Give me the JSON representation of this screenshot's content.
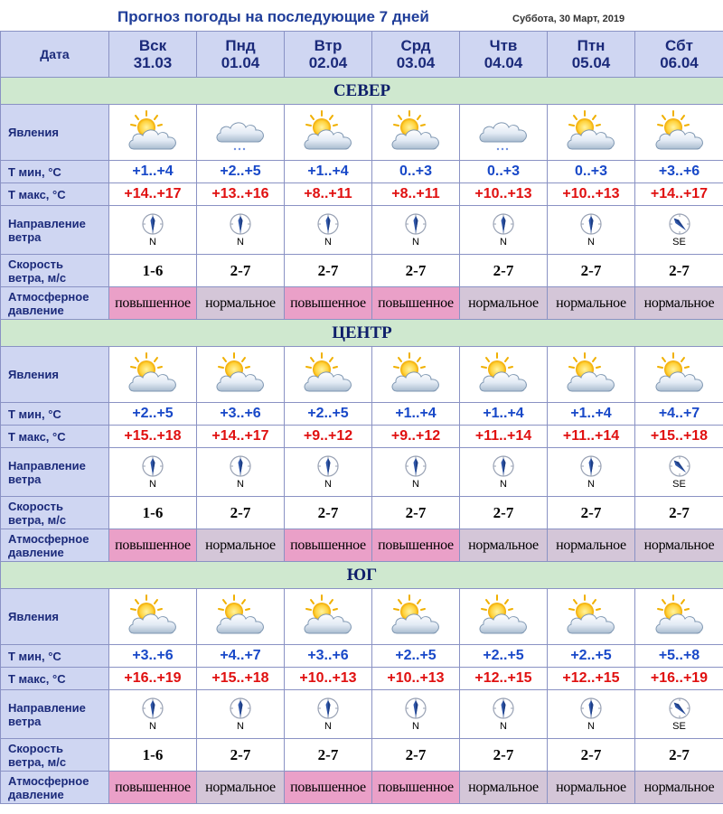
{
  "page": {
    "title": "Прогноз погоды на последующие 7 дней",
    "date_info": "Суббота, 30 Март, 2019"
  },
  "labels": {
    "date": "Дата",
    "phenomena": "Явления",
    "tmin": "Т мин, °С",
    "tmax": "Т макс, °С",
    "wind_dir": [
      "Направление",
      "ветра"
    ],
    "wind_speed": [
      "Скорость",
      "ветра, м/с"
    ],
    "pressure": [
      "Атмосферное",
      "давление"
    ]
  },
  "days": [
    {
      "dow": "Вск",
      "date": "31.03"
    },
    {
      "dow": "Пнд",
      "date": "01.04"
    },
    {
      "dow": "Втр",
      "date": "02.04"
    },
    {
      "dow": "Срд",
      "date": "03.04"
    },
    {
      "dow": "Чтв",
      "date": "04.04"
    },
    {
      "dow": "Птн",
      "date": "05.04"
    },
    {
      "dow": "Сбт",
      "date": "06.04"
    }
  ],
  "colors": {
    "header_bg": "#cfd6f2",
    "region_bg": "#cfe8cf",
    "tmin": "#1848c8",
    "tmax": "#e01010",
    "pressure_high": "#eaa0c8",
    "pressure_normal": "#d4c6d8"
  },
  "regions": [
    {
      "name": "СЕВЕР",
      "icons": [
        "partly-cloudy-sun-icon",
        "cloudy-light-snow-icon",
        "partly-cloudy-sun-icon",
        "partly-cloudy-sun-icon",
        "cloudy-light-snow-icon",
        "partly-cloudy-sun-icon",
        "partly-cloudy-sun-icon"
      ],
      "tmin": [
        "+1..+4",
        "+2..+5",
        "+1..+4",
        "0..+3",
        "0..+3",
        "0..+3",
        "+3..+6"
      ],
      "tmax": [
        "+14..+17",
        "+13..+16",
        "+8..+11",
        "+8..+11",
        "+10..+13",
        "+10..+13",
        "+14..+17"
      ],
      "wind_dir": [
        "N",
        "N",
        "N",
        "N",
        "N",
        "N",
        "SE"
      ],
      "wind_speed": [
        "1-6",
        "2-7",
        "2-7",
        "2-7",
        "2-7",
        "2-7",
        "2-7"
      ],
      "pressure": [
        "повышенное",
        "нормальное",
        "повышенное",
        "повышенное",
        "нормальное",
        "нормальное",
        "нормальное"
      ]
    },
    {
      "name": "ЦЕНТР",
      "icons": [
        "partly-cloudy-sun-icon",
        "partly-cloudy-sun-icon",
        "partly-cloudy-sun-icon",
        "partly-cloudy-sun-icon",
        "partly-cloudy-sun-icon",
        "partly-cloudy-sun-icon",
        "partly-cloudy-sun-icon"
      ],
      "tmin": [
        "+2..+5",
        "+3..+6",
        "+2..+5",
        "+1..+4",
        "+1..+4",
        "+1..+4",
        "+4..+7"
      ],
      "tmax": [
        "+15..+18",
        "+14..+17",
        "+9..+12",
        "+9..+12",
        "+11..+14",
        "+11..+14",
        "+15..+18"
      ],
      "wind_dir": [
        "N",
        "N",
        "N",
        "N",
        "N",
        "N",
        "SE"
      ],
      "wind_speed": [
        "1-6",
        "2-7",
        "2-7",
        "2-7",
        "2-7",
        "2-7",
        "2-7"
      ],
      "pressure": [
        "повышенное",
        "нормальное",
        "повышенное",
        "повышенное",
        "нормальное",
        "нормальное",
        "нормальное"
      ]
    },
    {
      "name": "ЮГ",
      "icons": [
        "partly-cloudy-sun-icon",
        "partly-cloudy-sun-icon",
        "partly-cloudy-sun-icon",
        "partly-cloudy-sun-icon",
        "partly-cloudy-sun-icon",
        "partly-cloudy-sun-icon",
        "partly-cloudy-sun-icon"
      ],
      "tmin": [
        "+3..+6",
        "+4..+7",
        "+3..+6",
        "+2..+5",
        "+2..+5",
        "+2..+5",
        "+5..+8"
      ],
      "tmax": [
        "+16..+19",
        "+15..+18",
        "+10..+13",
        "+10..+13",
        "+12..+15",
        "+12..+15",
        "+16..+19"
      ],
      "wind_dir": [
        "N",
        "N",
        "N",
        "N",
        "N",
        "N",
        "SE"
      ],
      "wind_speed": [
        "1-6",
        "2-7",
        "2-7",
        "2-7",
        "2-7",
        "2-7",
        "2-7"
      ],
      "pressure": [
        "повышенное",
        "нормальное",
        "повышенное",
        "повышенное",
        "нормальное",
        "нормальное",
        "нормальное"
      ]
    }
  ]
}
